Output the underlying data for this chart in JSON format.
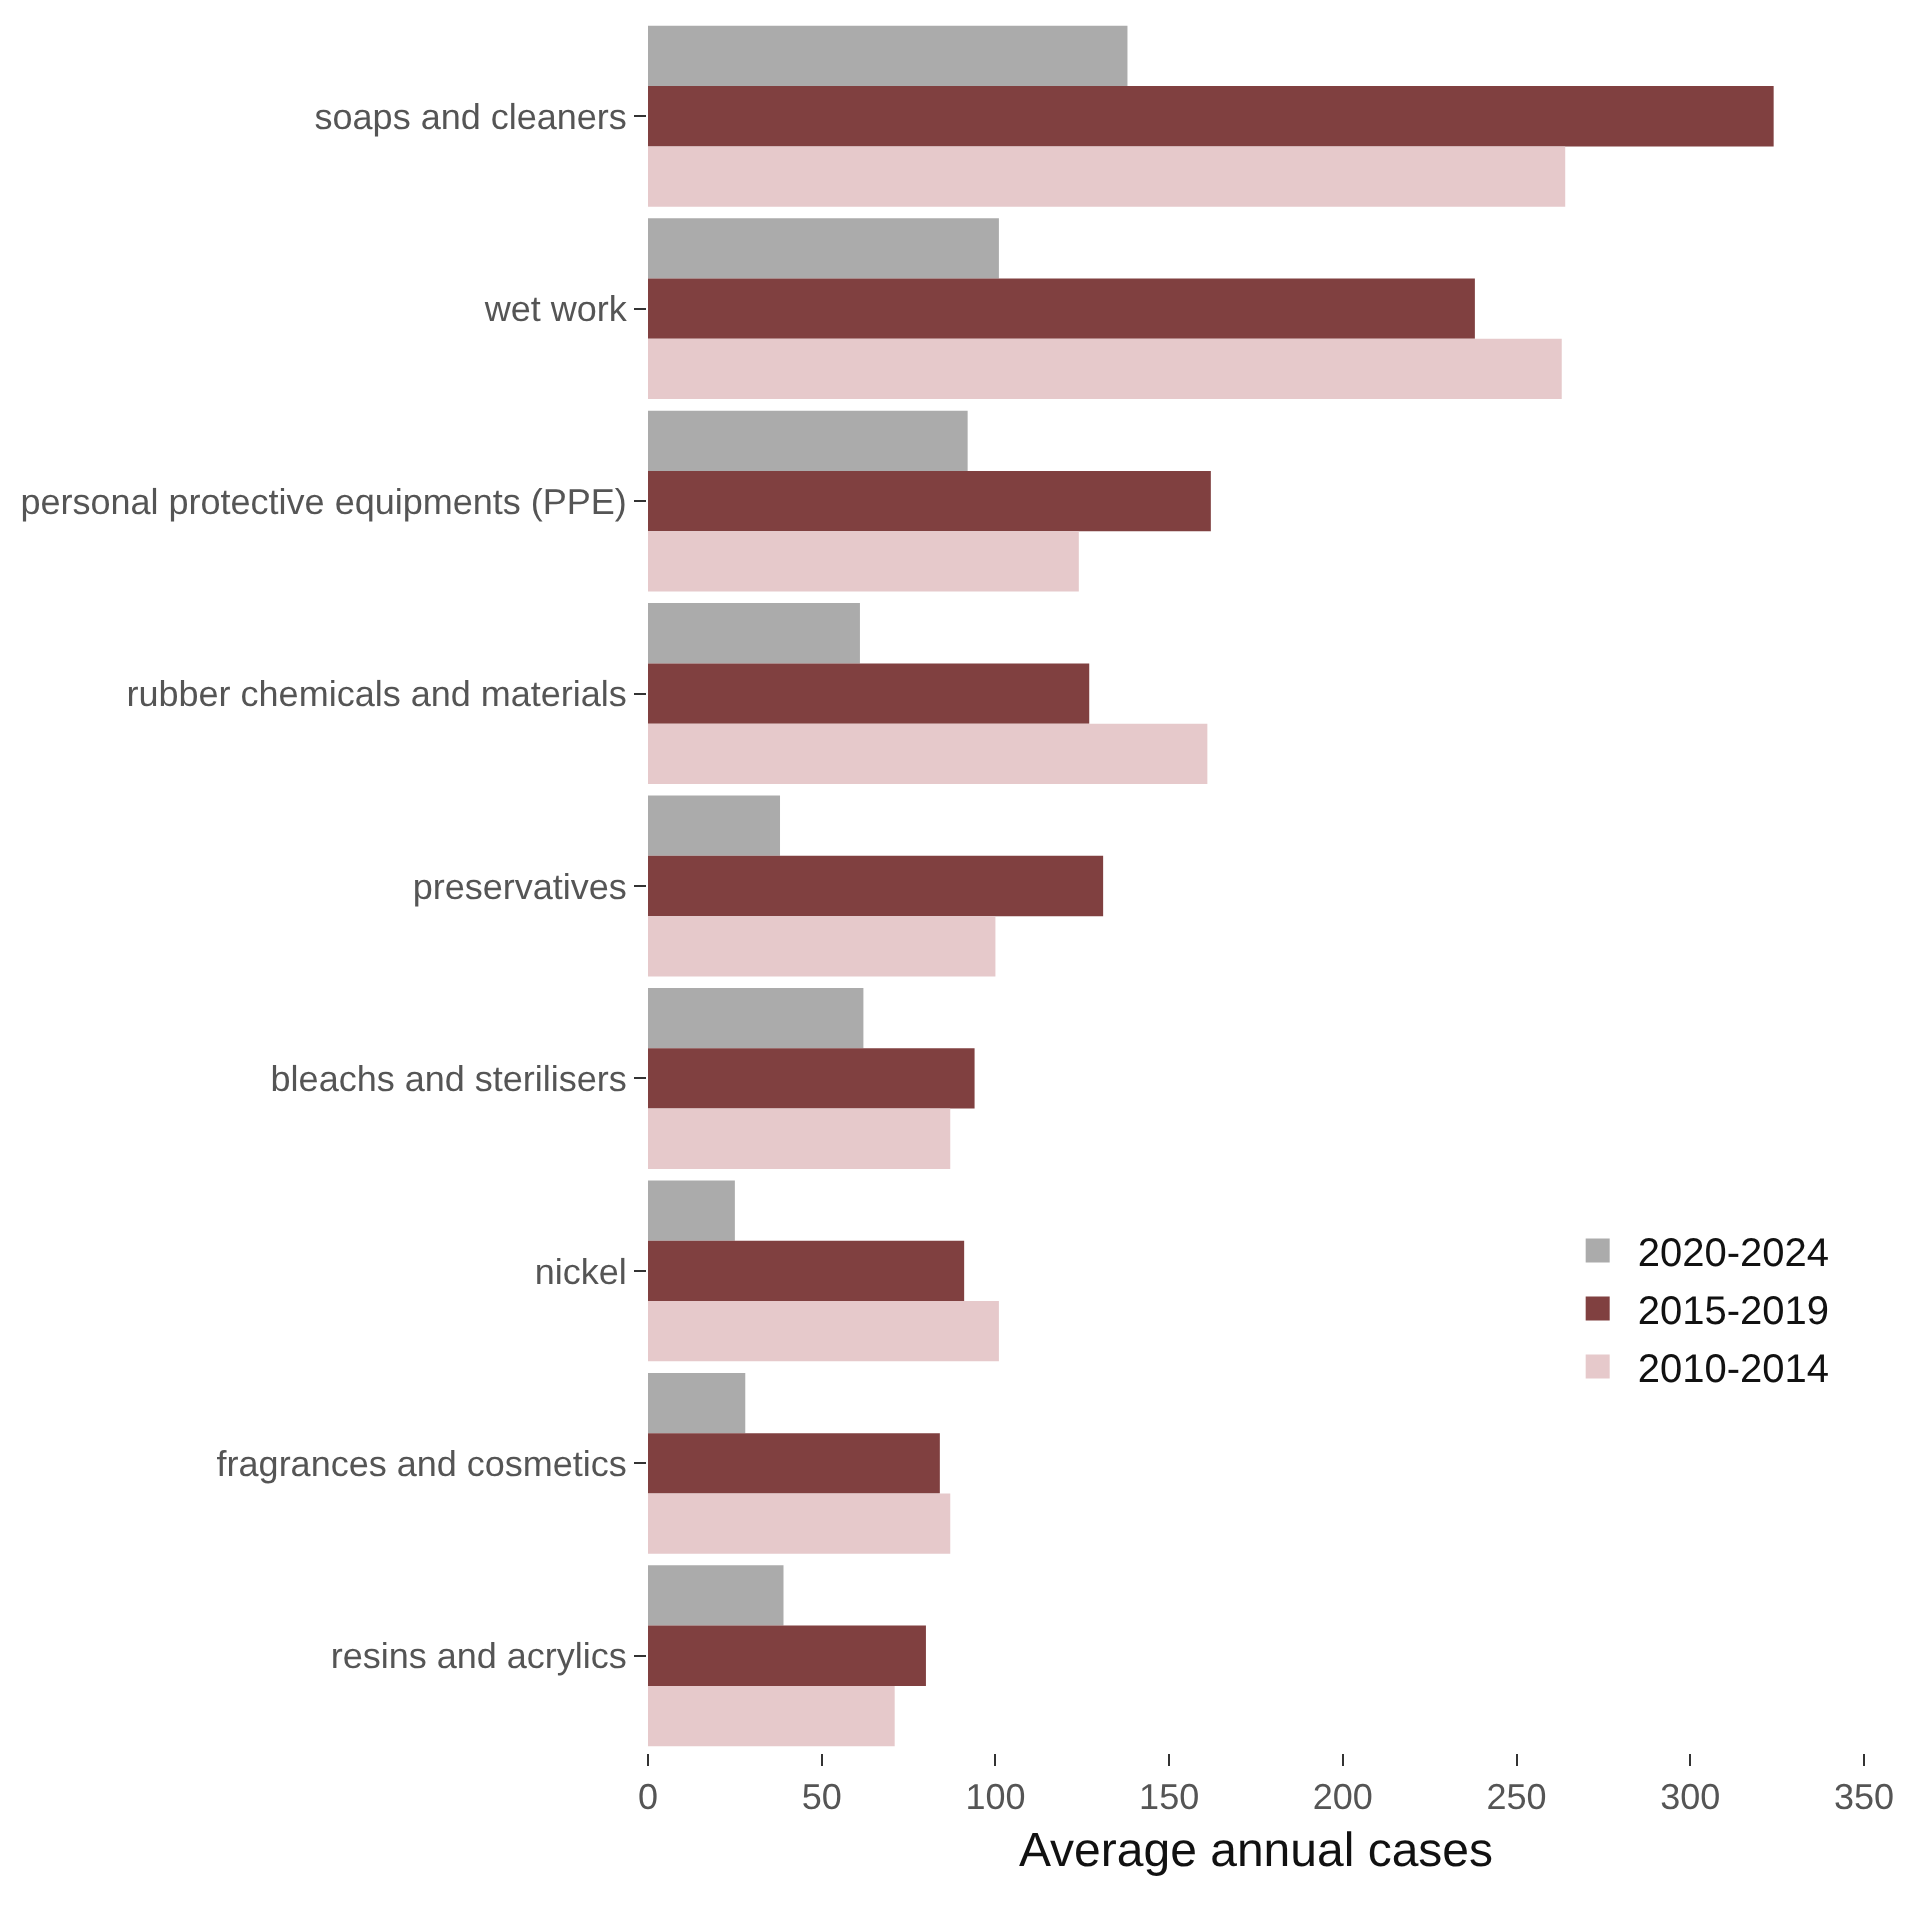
{
  "chart_data": {
    "type": "bar",
    "orientation": "horizontal",
    "xlabel": "Average annual cases",
    "categories": [
      "soaps and cleaners",
      "wet work",
      "personal protective equipments (PPE)",
      "rubber chemicals and materials",
      "preservatives",
      "bleachs and sterilisers",
      "nickel",
      "fragrances and cosmetics",
      "resins and acrylics"
    ],
    "series": [
      {
        "name": "2020-2024",
        "color": "#ababab",
        "values": [
          138,
          101,
          92,
          61,
          38,
          62,
          25,
          28,
          39
        ]
      },
      {
        "name": "2015-2019",
        "color": "#804040",
        "values": [
          324,
          238,
          162,
          127,
          131,
          94,
          91,
          84,
          80
        ]
      },
      {
        "name": "2010-2014",
        "color": "#e6c9cb",
        "values": [
          264,
          263,
          124,
          161,
          100,
          87,
          101,
          87,
          71
        ]
      }
    ],
    "xlim": [
      0,
      350
    ],
    "xticks": [
      0,
      50,
      100,
      150,
      200,
      250,
      300,
      350
    ],
    "grid": false,
    "legend": "bottom right"
  }
}
